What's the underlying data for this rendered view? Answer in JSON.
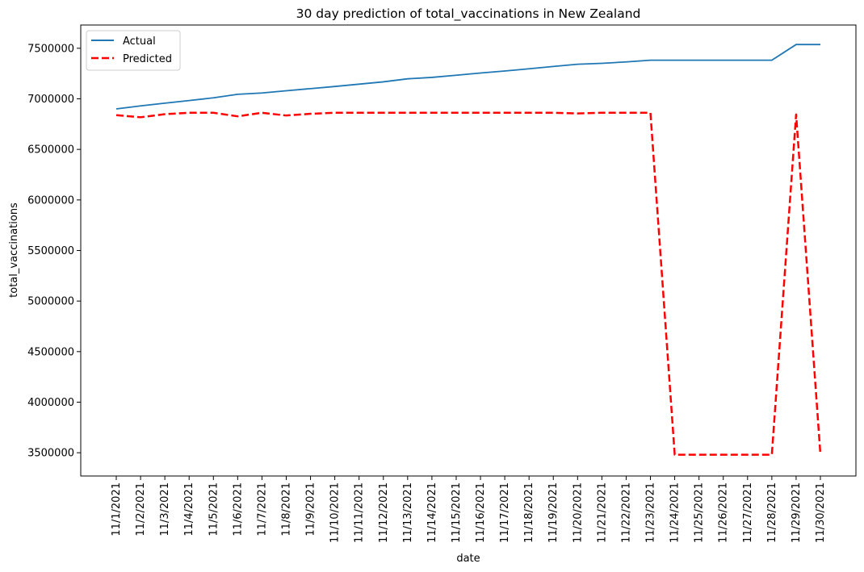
{
  "chart_data": {
    "type": "line",
    "title": "30 day prediction of total_vaccinations in New Zealand",
    "xlabel": "date",
    "ylabel": "total_vaccinations",
    "categories": [
      "11/1/2021",
      "11/2/2021",
      "11/3/2021",
      "11/4/2021",
      "11/5/2021",
      "11/6/2021",
      "11/7/2021",
      "11/8/2021",
      "11/9/2021",
      "11/10/2021",
      "11/11/2021",
      "11/12/2021",
      "11/13/2021",
      "11/14/2021",
      "11/15/2021",
      "11/16/2021",
      "11/17/2021",
      "11/18/2021",
      "11/19/2021",
      "11/20/2021",
      "11/21/2021",
      "11/22/2021",
      "11/23/2021",
      "11/24/2021",
      "11/25/2021",
      "11/26/2021",
      "11/27/2021",
      "11/28/2021",
      "11/29/2021",
      "11/30/2021"
    ],
    "ylim": [
      3270000,
      7730000
    ],
    "yticks": [
      3500000,
      4000000,
      4500000,
      5000000,
      5500000,
      6000000,
      6500000,
      7000000,
      7500000
    ],
    "grid": false,
    "legend_position": "top-left",
    "series": [
      {
        "name": "Actual",
        "color": "#1f77b4",
        "style": "solid",
        "values": [
          6900000,
          6930000,
          6957000,
          6983000,
          7010000,
          7045000,
          7058000,
          7080000,
          7101000,
          7122000,
          7145000,
          7168000,
          7198000,
          7212000,
          7233000,
          7255000,
          7275000,
          7297000,
          7320000,
          7342000,
          7351000,
          7365000,
          7382000,
          7382000,
          7382000,
          7382000,
          7382000,
          7382000,
          7537000,
          7537000
        ]
      },
      {
        "name": "Predicted",
        "color": "#ff0000",
        "style": "dashed",
        "values": [
          6838000,
          6818000,
          6848000,
          6862000,
          6862000,
          6827000,
          6862000,
          6835000,
          6852000,
          6862000,
          6862000,
          6862000,
          6862000,
          6862000,
          6862000,
          6862000,
          6862000,
          6862000,
          6862000,
          6855000,
          6862000,
          6862000,
          6862000,
          3480000,
          3480000,
          3480000,
          3480000,
          3480000,
          6845000,
          3485000
        ]
      }
    ]
  }
}
